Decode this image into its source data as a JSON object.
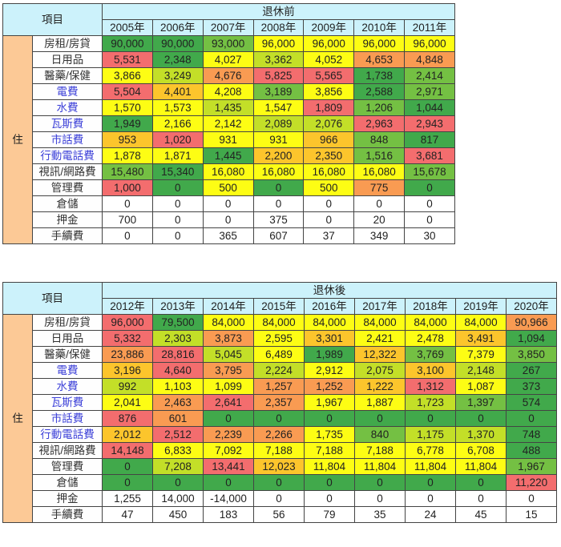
{
  "colors": {
    "header_bg": "#ccf2fb",
    "category_bg": "#fcc996",
    "dark_green": "#41a94b",
    "green": "#74c043",
    "yellow_green": "#c3df28",
    "yellow": "#fdfd14",
    "orange_yellow": "#fcc52c",
    "orange": "#f99b52",
    "red": "#f36d6e",
    "blue_label_text": "#3b3fd8"
  },
  "table1": {
    "item_header": "項目",
    "group_header": "退休前",
    "category": "住",
    "years": [
      "2005年",
      "2006年",
      "2007年",
      "2008年",
      "2009年",
      "2010年",
      "2011年"
    ],
    "rows": [
      {
        "label": "房租/房貸",
        "blue": false,
        "values": [
          "90,000",
          "90,000",
          "93,000",
          "96,000",
          "96,000",
          "96,000",
          "96,000"
        ],
        "colors": [
          "dg",
          "dg",
          "g",
          "y",
          "y",
          "y",
          "y"
        ]
      },
      {
        "label": "日用品",
        "blue": false,
        "values": [
          "5,531",
          "2,348",
          "4,027",
          "3,362",
          "4,052",
          "4,653",
          "4,848"
        ],
        "colors": [
          "r",
          "dg",
          "y",
          "yg",
          "y",
          "o",
          "o"
        ]
      },
      {
        "label": "醫藥/保健",
        "blue": false,
        "values": [
          "3,866",
          "3,249",
          "4,676",
          "5,825",
          "5,565",
          "1,738",
          "2,414"
        ],
        "colors": [
          "y",
          "yg",
          "o",
          "r",
          "r",
          "dg",
          "g"
        ]
      },
      {
        "label": "電費",
        "blue": true,
        "values": [
          "5,504",
          "4,401",
          "4,208",
          "3,189",
          "3,856",
          "2,588",
          "2,971"
        ],
        "colors": [
          "r",
          "oy",
          "y",
          "g",
          "y",
          "dg",
          "g"
        ]
      },
      {
        "label": "水費",
        "blue": true,
        "values": [
          "1,570",
          "1,573",
          "1,435",
          "1,547",
          "1,809",
          "1,206",
          "1,044"
        ],
        "colors": [
          "y",
          "y",
          "yg",
          "y",
          "r",
          "g",
          "dg"
        ]
      },
      {
        "label": "瓦斯費",
        "blue": true,
        "values": [
          "1,949",
          "2,166",
          "2,142",
          "2,089",
          "2,076",
          "2,963",
          "2,943"
        ],
        "colors": [
          "dg",
          "y",
          "y",
          "yg",
          "yg",
          "r",
          "r"
        ]
      },
      {
        "label": "市話費",
        "blue": true,
        "values": [
          "953",
          "1,020",
          "931",
          "931",
          "966",
          "848",
          "817"
        ],
        "colors": [
          "oy",
          "r",
          "y",
          "y",
          "oy",
          "g",
          "dg"
        ]
      },
      {
        "label": "行動電話費",
        "blue": true,
        "values": [
          "1,878",
          "1,871",
          "1,445",
          "2,200",
          "2,350",
          "1,516",
          "3,681"
        ],
        "colors": [
          "y",
          "y",
          "dg",
          "oy",
          "oy",
          "g",
          "r"
        ]
      },
      {
        "label": "視訊/網路費",
        "blue": false,
        "values": [
          "15,480",
          "15,340",
          "16,080",
          "16,080",
          "16,080",
          "16,080",
          "15,678"
        ],
        "colors": [
          "g",
          "dg",
          "y",
          "y",
          "y",
          "y",
          "g"
        ]
      },
      {
        "label": "管理費",
        "blue": false,
        "values": [
          "1,000",
          "0",
          "500",
          "0",
          "500",
          "775",
          "0"
        ],
        "colors": [
          "r",
          "dg",
          "y",
          "dg",
          "y",
          "o",
          "dg"
        ]
      },
      {
        "label": "倉儲",
        "blue": false,
        "values": [
          "0",
          "0",
          "0",
          "0",
          "0",
          "0",
          "0"
        ],
        "colors": [
          "w",
          "w",
          "w",
          "w",
          "w",
          "w",
          "w"
        ]
      },
      {
        "label": "押金",
        "blue": false,
        "values": [
          "700",
          "0",
          "0",
          "375",
          "0",
          "20",
          "0"
        ],
        "colors": [
          "w",
          "w",
          "w",
          "w",
          "w",
          "w",
          "w"
        ]
      },
      {
        "label": "手續費",
        "blue": false,
        "values": [
          "0",
          "0",
          "365",
          "607",
          "37",
          "349",
          "30"
        ],
        "colors": [
          "w",
          "w",
          "w",
          "w",
          "w",
          "w",
          "w"
        ]
      }
    ]
  },
  "table2": {
    "item_header": "項目",
    "group_header": "退休後",
    "category": "住",
    "years": [
      "2012年",
      "2013年",
      "2014年",
      "2015年",
      "2016年",
      "2017年",
      "2018年",
      "2019年",
      "2020年"
    ],
    "rows": [
      {
        "label": "房租/房貸",
        "blue": false,
        "values": [
          "96,000",
          "79,500",
          "84,000",
          "84,000",
          "84,000",
          "84,000",
          "84,000",
          "84,000",
          "90,966"
        ],
        "colors": [
          "r",
          "dg",
          "y",
          "y",
          "y",
          "y",
          "y",
          "y",
          "o"
        ]
      },
      {
        "label": "日用品",
        "blue": false,
        "values": [
          "5,332",
          "2,303",
          "3,873",
          "2,595",
          "3,301",
          "2,421",
          "2,478",
          "3,491",
          "1,094"
        ],
        "colors": [
          "r",
          "yg",
          "o",
          "y",
          "oy",
          "y",
          "y",
          "oy",
          "dg"
        ]
      },
      {
        "label": "醫藥/保健",
        "blue": false,
        "values": [
          "23,886",
          "28,816",
          "5,045",
          "6,489",
          "1,989",
          "12,322",
          "3,769",
          "7,379",
          "3,850"
        ],
        "colors": [
          "o",
          "r",
          "yg",
          "y",
          "dg",
          "oy",
          "g",
          "y",
          "g"
        ]
      },
      {
        "label": "電費",
        "blue": true,
        "values": [
          "3,196",
          "4,640",
          "3,795",
          "2,224",
          "2,912",
          "2,075",
          "3,100",
          "2,148",
          "267"
        ],
        "colors": [
          "oy",
          "r",
          "o",
          "yg",
          "y",
          "yg",
          "oy",
          "yg",
          "dg"
        ]
      },
      {
        "label": "水費",
        "blue": true,
        "values": [
          "992",
          "1,103",
          "1,099",
          "1,257",
          "1,252",
          "1,222",
          "1,312",
          "1,087",
          "373"
        ],
        "colors": [
          "yg",
          "y",
          "y",
          "o",
          "o",
          "oy",
          "r",
          "y",
          "dg"
        ]
      },
      {
        "label": "瓦斯費",
        "blue": true,
        "values": [
          "2,041",
          "2,463",
          "2,641",
          "2,357",
          "1,967",
          "1,887",
          "1,723",
          "1,397",
          "574"
        ],
        "colors": [
          "y",
          "o",
          "r",
          "o",
          "y",
          "y",
          "yg",
          "g",
          "dg"
        ]
      },
      {
        "label": "市話費",
        "blue": true,
        "values": [
          "876",
          "601",
          "0",
          "0",
          "0",
          "0",
          "0",
          "0",
          "0"
        ],
        "colors": [
          "r",
          "o",
          "dg",
          "dg",
          "dg",
          "dg",
          "dg",
          "dg",
          "dg"
        ]
      },
      {
        "label": "行動電話費",
        "blue": true,
        "values": [
          "2,012",
          "2,512",
          "2,239",
          "2,266",
          "1,735",
          "840",
          "1,175",
          "1,370",
          "748"
        ],
        "colors": [
          "oy",
          "r",
          "o",
          "o",
          "y",
          "g",
          "yg",
          "yg",
          "dg"
        ]
      },
      {
        "label": "視訊/網路費",
        "blue": false,
        "values": [
          "14,148",
          "6,833",
          "7,092",
          "7,188",
          "7,188",
          "7,188",
          "6,778",
          "6,708",
          "488"
        ],
        "colors": [
          "r",
          "y",
          "y",
          "y",
          "y",
          "y",
          "y",
          "y",
          "dg"
        ]
      },
      {
        "label": "管理費",
        "blue": false,
        "values": [
          "0",
          "7,208",
          "13,441",
          "12,023",
          "11,804",
          "11,804",
          "11,804",
          "11,804",
          "1,967"
        ],
        "colors": [
          "dg",
          "yg",
          "r",
          "oy",
          "y",
          "y",
          "y",
          "y",
          "g"
        ]
      },
      {
        "label": "倉儲",
        "blue": false,
        "values": [
          "0",
          "0",
          "0",
          "0",
          "0",
          "0",
          "0",
          "0",
          "11,220"
        ],
        "colors": [
          "dg",
          "dg",
          "dg",
          "dg",
          "dg",
          "dg",
          "dg",
          "dg",
          "r"
        ]
      },
      {
        "label": "押金",
        "blue": false,
        "values": [
          "1,255",
          "14,000",
          "-14,000",
          "0",
          "0",
          "0",
          "0",
          "0",
          "0"
        ],
        "colors": [
          "w",
          "w",
          "w",
          "w",
          "w",
          "w",
          "w",
          "w",
          "w"
        ]
      },
      {
        "label": "手續費",
        "blue": false,
        "values": [
          "47",
          "450",
          "183",
          "56",
          "79",
          "35",
          "24",
          "45",
          "15"
        ],
        "colors": [
          "w",
          "w",
          "w",
          "w",
          "w",
          "w",
          "w",
          "w",
          "w"
        ]
      }
    ]
  }
}
